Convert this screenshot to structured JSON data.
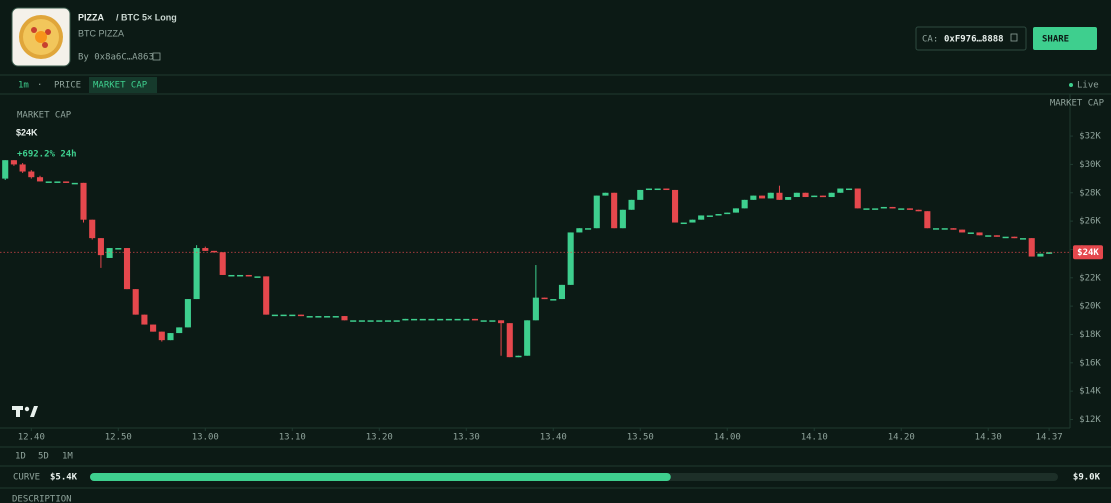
{
  "header": {
    "title": "PIZZA",
    "subtitle": "/ BTC 5× Long",
    "name": "BTC PIZZA",
    "creator": "By 0x8a6C…A863",
    "ca_label": "CA:",
    "ca_value": "0xF976…8888",
    "share": "SHARE"
  },
  "toolbar": {
    "interval": "1m",
    "separator": "·",
    "tabs": [
      "PRICE",
      "MARKET CAP"
    ],
    "status": "Live"
  },
  "chart_data": {
    "type": "candlestick",
    "y_axis_label": "MARKET CAP",
    "legend_label": "MARKET CAP",
    "legend_value": "$24K",
    "legend_change": "+692.2% 24h",
    "last_label": "$24K",
    "up_color": "#3ecf8e",
    "down_color": "#e5484d",
    "grid": false,
    "open": [
      29.0,
      30.3,
      30.0,
      29.5,
      29.1,
      28.8,
      28.8,
      28.8,
      28.7,
      28.7,
      26.1,
      24.8,
      23.4,
      24.1,
      24.1,
      21.2,
      19.4,
      18.7,
      18.2,
      17.6,
      18.1,
      18.5,
      20.5,
      24.1,
      23.9,
      23.8,
      22.2,
      22.2,
      22.2,
      22.1,
      22.1,
      19.4,
      19.4,
      19.4,
      19.4,
      19.3,
      19.3,
      19.3,
      19.3,
      19.3,
      19.0,
      19.0,
      19.0,
      19.0,
      19.0,
      19.0,
      19.0,
      19.1,
      19.1,
      19.1,
      19.1,
      19.1,
      19.1,
      19.1,
      19.1,
      19.0,
      19.0,
      19.0,
      18.8,
      16.4,
      16.5,
      19.0,
      20.6,
      20.5,
      20.5,
      21.5,
      25.2,
      25.5,
      25.5,
      27.8,
      28.0,
      25.5,
      26.8,
      27.5,
      28.2,
      28.3,
      28.3,
      28.2,
      25.9,
      25.9,
      26.1,
      26.4,
      26.4,
      26.5,
      26.6,
      26.9,
      27.5,
      27.8,
      27.6,
      28.0,
      27.5,
      27.7,
      28.0,
      27.7,
      27.8,
      27.7,
      28.0,
      28.3,
      28.3,
      26.9,
      26.9,
      26.9,
      27.0,
      26.9,
      26.9,
      26.8,
      26.7,
      25.5,
      25.5,
      25.5,
      25.4,
      25.2,
      25.2,
      25.0,
      25.0,
      24.9,
      24.9,
      24.8,
      24.8,
      23.5,
      23.7
    ],
    "high": [
      30.3,
      30.3,
      30.1,
      29.6,
      29.2,
      28.8,
      28.8,
      28.8,
      28.7,
      28.7,
      26.1,
      24.8,
      24.1,
      24.1,
      24.1,
      21.2,
      19.4,
      18.7,
      18.2,
      18.1,
      18.5,
      20.5,
      24.3,
      24.2,
      23.9,
      23.8,
      22.2,
      22.2,
      22.2,
      22.1,
      22.1,
      19.4,
      19.4,
      19.4,
      19.4,
      19.3,
      19.3,
      19.3,
      19.3,
      19.3,
      19.0,
      19.0,
      19.0,
      19.0,
      19.0,
      19.0,
      19.1,
      19.1,
      19.1,
      19.1,
      19.1,
      19.1,
      19.1,
      19.1,
      19.1,
      19.0,
      19.0,
      19.0,
      18.8,
      16.5,
      19.0,
      22.9,
      20.6,
      20.5,
      21.5,
      25.2,
      25.5,
      25.5,
      27.8,
      28.0,
      28.0,
      26.8,
      27.5,
      28.2,
      28.3,
      28.3,
      28.3,
      28.2,
      25.9,
      26.1,
      26.4,
      26.4,
      26.5,
      26.6,
      26.9,
      27.5,
      27.8,
      27.8,
      28.0,
      28.5,
      27.7,
      28.0,
      28.0,
      27.8,
      27.8,
      28.0,
      28.3,
      28.3,
      28.3,
      26.9,
      26.9,
      27.0,
      27.0,
      26.9,
      26.9,
      26.8,
      26.7,
      25.5,
      25.5,
      25.5,
      25.4,
      25.2,
      25.2,
      25.0,
      25.0,
      24.9,
      24.9,
      24.8,
      24.8,
      23.7,
      23.8
    ],
    "low": [
      28.9,
      29.9,
      29.4,
      29.0,
      28.8,
      28.8,
      28.8,
      28.7,
      28.7,
      25.9,
      24.7,
      22.7,
      23.4,
      24.1,
      21.2,
      19.4,
      18.7,
      18.2,
      17.5,
      17.6,
      18.1,
      18.5,
      20.5,
      23.9,
      23.8,
      22.2,
      22.2,
      22.2,
      22.1,
      22.1,
      19.4,
      19.4,
      19.4,
      19.4,
      19.3,
      19.3,
      19.3,
      19.3,
      19.3,
      19.0,
      19.0,
      19.0,
      19.0,
      19.0,
      19.0,
      19.0,
      19.0,
      19.1,
      19.1,
      19.1,
      19.1,
      19.1,
      19.1,
      19.1,
      19.0,
      19.0,
      19.0,
      16.5,
      16.4,
      16.4,
      16.5,
      19.0,
      20.5,
      20.5,
      20.5,
      21.5,
      25.2,
      25.5,
      25.5,
      27.8,
      25.5,
      25.5,
      26.8,
      27.5,
      28.2,
      28.3,
      28.2,
      25.9,
      25.9,
      25.9,
      26.1,
      26.4,
      26.4,
      26.5,
      26.6,
      26.9,
      27.5,
      27.6,
      27.6,
      27.5,
      27.5,
      27.7,
      27.7,
      27.7,
      27.7,
      27.7,
      28.0,
      28.3,
      26.9,
      26.9,
      26.9,
      26.9,
      26.9,
      26.9,
      26.8,
      26.7,
      25.5,
      25.5,
      25.5,
      25.4,
      25.2,
      25.2,
      25.0,
      25.0,
      24.9,
      24.9,
      24.8,
      24.8,
      23.5,
      23.5,
      23.7
    ],
    "close": [
      30.3,
      30.0,
      29.5,
      29.1,
      28.8,
      28.8,
      28.8,
      28.7,
      28.7,
      26.1,
      24.8,
      23.6,
      24.1,
      24.1,
      21.2,
      19.4,
      18.7,
      18.2,
      17.6,
      18.1,
      18.5,
      20.5,
      24.1,
      23.9,
      23.8,
      22.2,
      22.2,
      22.2,
      22.1,
      22.1,
      19.4,
      19.4,
      19.4,
      19.4,
      19.3,
      19.3,
      19.3,
      19.3,
      19.3,
      19.0,
      19.0,
      19.0,
      19.0,
      19.0,
      19.0,
      19.0,
      19.1,
      19.1,
      19.1,
      19.1,
      19.1,
      19.1,
      19.1,
      19.1,
      19.0,
      19.0,
      19.0,
      18.8,
      16.4,
      16.5,
      19.0,
      20.6,
      20.5,
      20.5,
      21.5,
      25.2,
      25.5,
      25.5,
      27.8,
      28.0,
      25.5,
      26.8,
      27.5,
      28.2,
      28.3,
      28.3,
      28.2,
      25.9,
      25.9,
      26.1,
      26.4,
      26.4,
      26.5,
      26.6,
      26.9,
      27.5,
      27.8,
      27.6,
      28.0,
      27.5,
      27.7,
      28.0,
      27.7,
      27.8,
      27.7,
      28.0,
      28.3,
      28.3,
      26.9,
      26.9,
      26.9,
      27.0,
      26.9,
      26.9,
      26.8,
      26.7,
      25.5,
      25.5,
      25.5,
      25.4,
      25.2,
      25.2,
      25.0,
      25.0,
      24.9,
      24.9,
      24.8,
      24.8,
      23.5,
      23.7,
      23.8
    ],
    "xlim": [
      -0.6,
      122.4
    ],
    "xticks": [
      {
        "value": 3,
        "label": "12.40"
      },
      {
        "value": 13,
        "label": "12.50"
      },
      {
        "value": 23,
        "label": "13.00"
      },
      {
        "value": 33,
        "label": "13.10"
      },
      {
        "value": 43,
        "label": "13.20"
      },
      {
        "value": 53,
        "label": "13.30"
      },
      {
        "value": 63,
        "label": "13.40"
      },
      {
        "value": 73,
        "label": "13.50"
      },
      {
        "value": 83,
        "label": "14.00"
      },
      {
        "value": 93,
        "label": "14.10"
      },
      {
        "value": 103,
        "label": "14.20"
      },
      {
        "value": 113,
        "label": "14.30"
      },
      {
        "value": 120,
        "label": "14.37"
      }
    ],
    "ylim": [
      11.4,
      34.9
    ],
    "yticks": [
      {
        "value": 12,
        "label": "$12K"
      },
      {
        "value": 14,
        "label": "$14K"
      },
      {
        "value": 16,
        "label": "$16K"
      },
      {
        "value": 18,
        "label": "$18K"
      },
      {
        "value": 20,
        "label": "$20K"
      },
      {
        "value": 22,
        "label": "$22K"
      },
      {
        "value": 24,
        "label": "$24K"
      },
      {
        "value": 26,
        "label": "$26K"
      },
      {
        "value": 28,
        "label": "$28K"
      },
      {
        "value": 30,
        "label": "$30K"
      },
      {
        "value": 32,
        "label": "$32K"
      }
    ]
  },
  "ranges": [
    "1D",
    "5D",
    "1M"
  ],
  "curve": {
    "label": "CURVE",
    "current": 5.4,
    "current_label": "$5.4K",
    "target": 9.0,
    "target_label": "$9.0K"
  },
  "footer": {
    "section": "DESCRIPTION"
  }
}
